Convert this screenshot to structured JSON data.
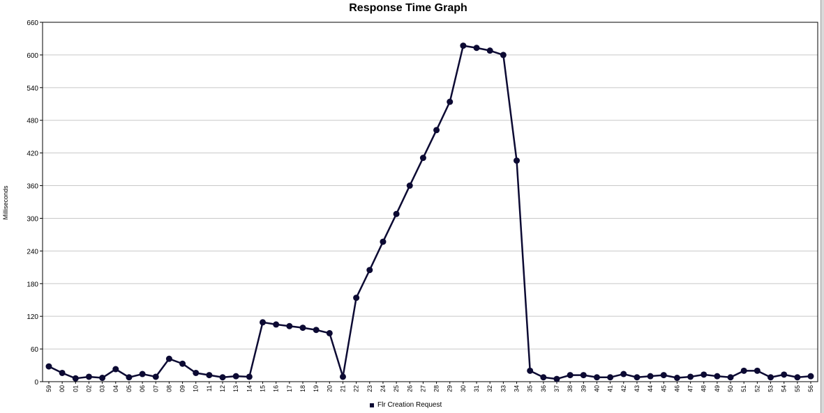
{
  "chart_data": {
    "type": "line",
    "title": "Response Time Graph",
    "xlabel": "",
    "ylabel": "Milliseconds",
    "ylim": [
      0,
      660
    ],
    "yticks": [
      0,
      60,
      120,
      180,
      240,
      300,
      360,
      420,
      480,
      540,
      600,
      660
    ],
    "grid": true,
    "legend_position": "bottom",
    "categories": [
      "59",
      "00",
      "01",
      "02",
      "03",
      "04",
      "05",
      "06",
      "07",
      "08",
      "09",
      "10",
      "11",
      "12",
      "13",
      "14",
      "15",
      "16",
      "17",
      "18",
      "19",
      "20",
      "21",
      "22",
      "23",
      "24",
      "25",
      "26",
      "27",
      "28",
      "29",
      "30",
      "31",
      "32",
      "33",
      "34",
      "35",
      "36",
      "37",
      "38",
      "39",
      "40",
      "41",
      "42",
      "43",
      "44",
      "45",
      "46",
      "47",
      "48",
      "49",
      "50",
      "51",
      "52",
      "53",
      "54",
      "55",
      "56"
    ],
    "series": [
      {
        "name": "Flr Creation Request",
        "color": "#0c0a33",
        "values": [
          28,
          16,
          6,
          9,
          7,
          23,
          8,
          14,
          9,
          42,
          33,
          16,
          12,
          8,
          10,
          9,
          109,
          105,
          102,
          99,
          95,
          89,
          9,
          154,
          205,
          257,
          308,
          360,
          411,
          462,
          514,
          617,
          613,
          608,
          600,
          406,
          20,
          8,
          5,
          12,
          12,
          8,
          8,
          14,
          8,
          10,
          12,
          7,
          9,
          13,
          10,
          8,
          20,
          20,
          8,
          13,
          8,
          10
        ]
      }
    ],
    "x_tick_labels": [
      "59",
      "00",
      "01",
      "02",
      "03",
      "04",
      "05",
      "06",
      "07",
      "08",
      "09",
      "10",
      "11",
      "12",
      "13",
      "14",
      "15",
      "16",
      "17",
      "18",
      "19",
      "20",
      "21",
      "22",
      "23",
      "24",
      "25",
      "26",
      "27",
      "28",
      "29",
      "30",
      "31",
      "32",
      "33",
      "34",
      "35",
      "36",
      "37",
      "38",
      "39",
      "40",
      "41",
      "42",
      "43",
      "44",
      "45",
      "46",
      "47",
      "48",
      "49",
      "50",
      "51",
      "52",
      "53",
      "54",
      "55",
      "56"
    ]
  }
}
